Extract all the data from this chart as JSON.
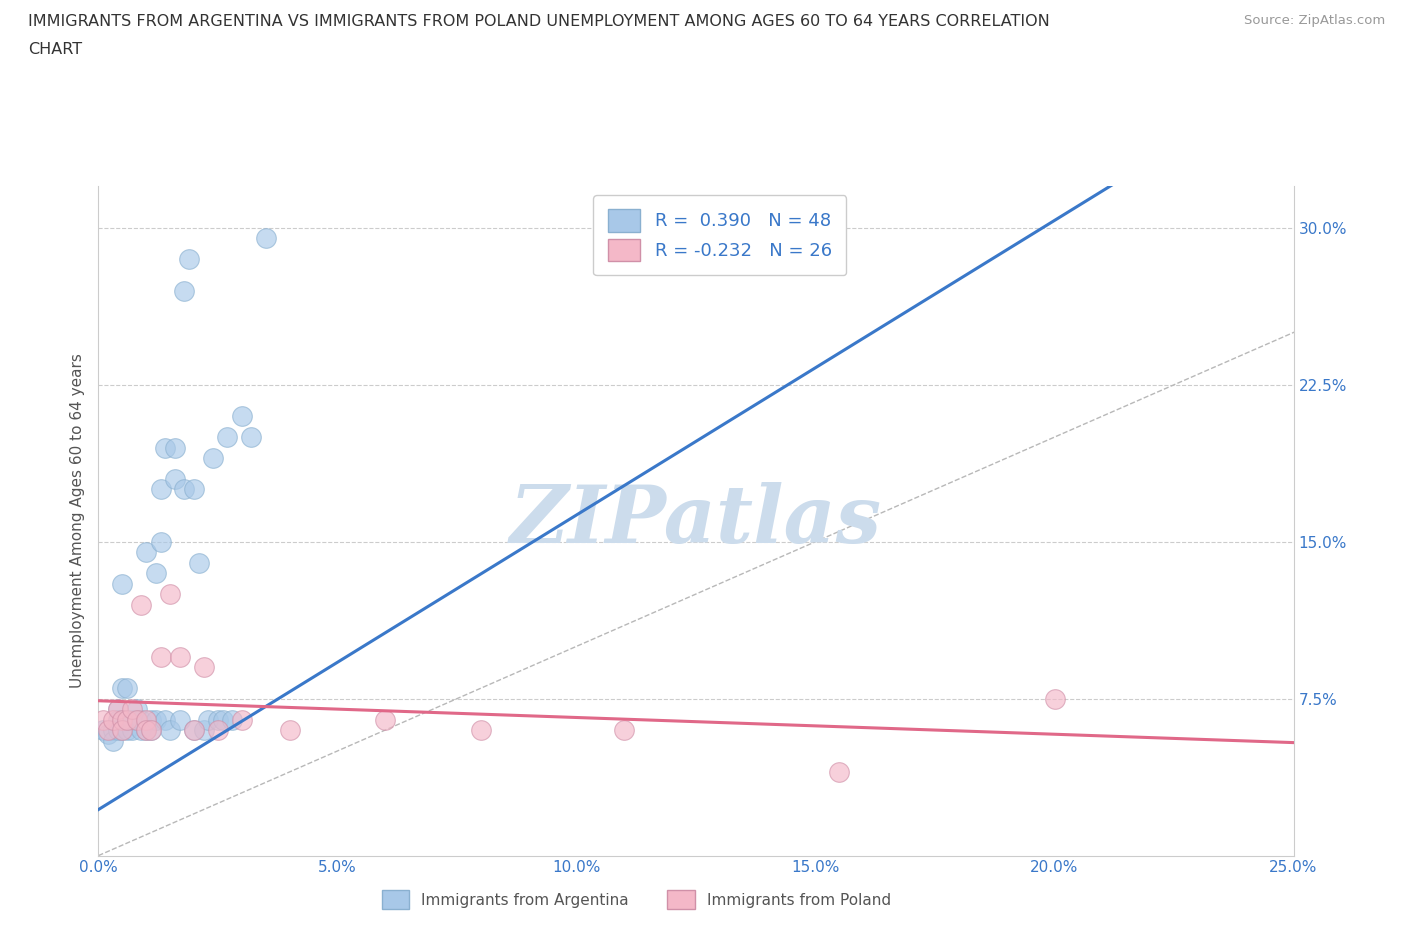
{
  "title_line1": "IMMIGRANTS FROM ARGENTINA VS IMMIGRANTS FROM POLAND UNEMPLOYMENT AMONG AGES 60 TO 64 YEARS CORRELATION",
  "title_line2": "CHART",
  "source_text": "Source: ZipAtlas.com",
  "ylabel": "Unemployment Among Ages 60 to 64 years",
  "xlim": [
    0.0,
    0.25
  ],
  "ylim": [
    0.0,
    0.32
  ],
  "xticks": [
    0.0,
    0.05,
    0.1,
    0.15,
    0.2,
    0.25
  ],
  "yticks": [
    0.0,
    0.075,
    0.15,
    0.225,
    0.3
  ],
  "xticklabels": [
    "0.0%",
    "5.0%",
    "10.0%",
    "15.0%",
    "20.0%",
    "25.0%"
  ],
  "yticklabels_right": [
    "",
    "7.5%",
    "15.0%",
    "22.5%",
    "30.0%"
  ],
  "argentina_color": "#a8c8e8",
  "poland_color": "#f4b8c8",
  "argentina_line_color": "#3a78c9",
  "poland_line_color": "#e06888",
  "diagonal_color": "#b8b8b8",
  "watermark_color": "#ccdcec",
  "legend_label_argentina": "R =  0.390   N = 48",
  "legend_label_poland": "R = -0.232   N = 26",
  "legend_bottom_argentina": "Immigrants from Argentina",
  "legend_bottom_poland": "Immigrants from Poland",
  "R_argentina": 0.39,
  "R_poland": -0.232,
  "argentina_x": [
    0.001,
    0.002,
    0.003,
    0.003,
    0.004,
    0.004,
    0.004,
    0.005,
    0.005,
    0.005,
    0.006,
    0.006,
    0.007,
    0.007,
    0.008,
    0.008,
    0.009,
    0.009,
    0.01,
    0.01,
    0.011,
    0.011,
    0.012,
    0.012,
    0.013,
    0.013,
    0.014,
    0.014,
    0.015,
    0.016,
    0.016,
    0.017,
    0.018,
    0.018,
    0.019,
    0.02,
    0.02,
    0.021,
    0.022,
    0.023,
    0.024,
    0.025,
    0.026,
    0.027,
    0.028,
    0.03,
    0.032,
    0.035
  ],
  "argentina_y": [
    0.06,
    0.058,
    0.06,
    0.055,
    0.07,
    0.065,
    0.06,
    0.08,
    0.13,
    0.06,
    0.06,
    0.08,
    0.06,
    0.065,
    0.065,
    0.07,
    0.06,
    0.065,
    0.06,
    0.145,
    0.065,
    0.06,
    0.135,
    0.065,
    0.15,
    0.175,
    0.065,
    0.195,
    0.06,
    0.195,
    0.18,
    0.065,
    0.27,
    0.175,
    0.285,
    0.175,
    0.06,
    0.14,
    0.06,
    0.065,
    0.19,
    0.065,
    0.065,
    0.2,
    0.065,
    0.21,
    0.2,
    0.295
  ],
  "poland_x": [
    0.001,
    0.002,
    0.003,
    0.004,
    0.005,
    0.005,
    0.006,
    0.007,
    0.008,
    0.009,
    0.01,
    0.01,
    0.011,
    0.013,
    0.015,
    0.017,
    0.02,
    0.022,
    0.025,
    0.03,
    0.04,
    0.06,
    0.08,
    0.11,
    0.155,
    0.2
  ],
  "poland_y": [
    0.065,
    0.06,
    0.065,
    0.07,
    0.065,
    0.06,
    0.065,
    0.07,
    0.065,
    0.12,
    0.065,
    0.06,
    0.06,
    0.095,
    0.125,
    0.095,
    0.06,
    0.09,
    0.06,
    0.065,
    0.06,
    0.065,
    0.06,
    0.06,
    0.04,
    0.075
  ],
  "arg_line_x0": 0.0,
  "arg_line_y0": 0.022,
  "arg_line_x1": 0.13,
  "arg_line_y1": 0.205,
  "pol_line_x0": 0.0,
  "pol_line_y0": 0.074,
  "pol_line_x1": 0.25,
  "pol_line_y1": 0.054
}
